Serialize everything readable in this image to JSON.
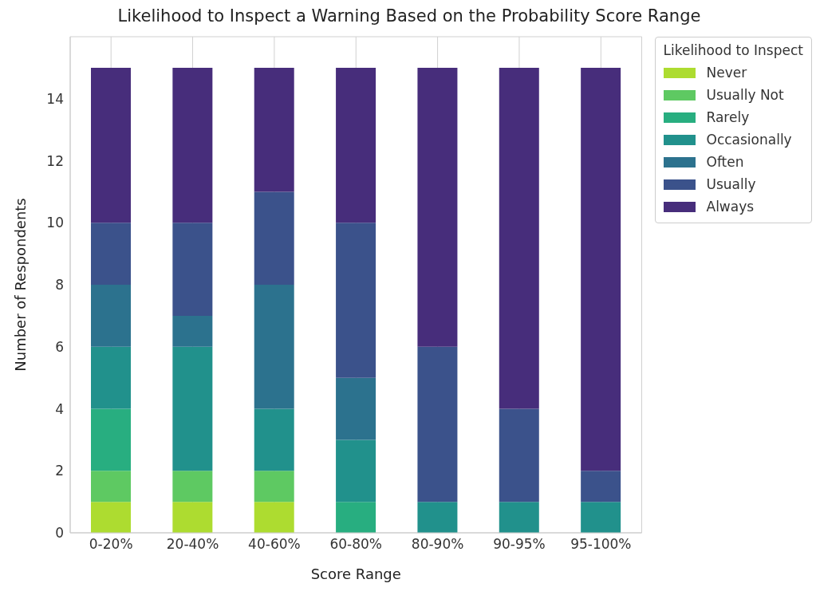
{
  "chart_data": {
    "type": "bar",
    "title": "Likelihood to Inspect a Warning Based on the Probability Score Range",
    "xlabel": "Score Range",
    "ylabel": "Number of Respondents",
    "legend_title": "Likelihood to Inspect",
    "categories": [
      "0-20%",
      "20-40%",
      "40-60%",
      "60-80%",
      "80-90%",
      "90-95%",
      "95-100%"
    ],
    "stacked": true,
    "ylim": [
      0,
      16
    ],
    "yticks": [
      0,
      2,
      4,
      6,
      8,
      10,
      12,
      14
    ],
    "grid": true,
    "legend": "top right",
    "series": [
      {
        "name": "Never",
        "color": "#addc30",
        "values": [
          1,
          1,
          1,
          0,
          0,
          0,
          0
        ]
      },
      {
        "name": "Usually Not",
        "color": "#5ec962",
        "values": [
          1,
          1,
          1,
          0,
          0,
          0,
          0
        ]
      },
      {
        "name": "Rarely",
        "color": "#28ae80",
        "values": [
          2,
          0,
          0,
          1,
          0,
          0,
          0
        ]
      },
      {
        "name": "Occasionally",
        "color": "#21918c",
        "values": [
          2,
          4,
          2,
          2,
          1,
          1,
          1
        ]
      },
      {
        "name": "Often",
        "color": "#2c728e",
        "values": [
          2,
          1,
          4,
          2,
          0,
          0,
          0
        ]
      },
      {
        "name": "Usually",
        "color": "#3b528b",
        "values": [
          2,
          3,
          3,
          5,
          5,
          3,
          1
        ]
      },
      {
        "name": "Always",
        "color": "#472d7b",
        "values": [
          5,
          5,
          4,
          5,
          9,
          11,
          13
        ]
      }
    ]
  }
}
